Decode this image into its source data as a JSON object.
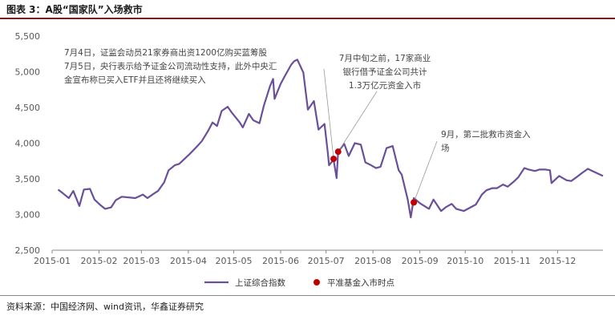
{
  "header": {
    "title": "图表 3：A股“国家队”入场救市"
  },
  "source": {
    "text": "资料来源：中国经济网、wind资讯，华鑫证券研究"
  },
  "colors": {
    "line": "#6a4f9a",
    "marker": "#c00000",
    "axis": "#888888",
    "text": "#595959"
  },
  "chart_data": {
    "type": "line",
    "title": "",
    "xlabel": "",
    "ylabel": "",
    "ylim": [
      2500,
      5500
    ],
    "yticks": [
      "2,500",
      "3,000",
      "3,500",
      "4,000",
      "4,500",
      "5,000",
      "5,500"
    ],
    "ytick_values": [
      2500,
      3000,
      3500,
      4000,
      4500,
      5000,
      5500
    ],
    "categories": [
      "2015-01",
      "2015-02",
      "2015-03",
      "2015-04",
      "2015-05",
      "2015-06",
      "2015-07",
      "2015-08",
      "2015-09",
      "2015-10",
      "2015-11",
      "2015-12"
    ],
    "grid": false,
    "legend_position": "bottom",
    "series": [
      {
        "name": "上证综合指数",
        "x": [
          "2015-01-05",
          "2015-01-08",
          "2015-01-12",
          "2015-01-15",
          "2015-01-19",
          "2015-01-22",
          "2015-01-26",
          "2015-01-29",
          "2015-02-02",
          "2015-02-05",
          "2015-02-09",
          "2015-02-12",
          "2015-02-16",
          "2015-02-25",
          "2015-03-02",
          "2015-03-05",
          "2015-03-09",
          "2015-03-12",
          "2015-03-16",
          "2015-03-19",
          "2015-03-23",
          "2015-03-26",
          "2015-03-30",
          "2015-04-02",
          "2015-04-07",
          "2015-04-10",
          "2015-04-14",
          "2015-04-17",
          "2015-04-20",
          "2015-04-23",
          "2015-04-27",
          "2015-04-30",
          "2015-05-05",
          "2015-05-07",
          "2015-05-11",
          "2015-05-14",
          "2015-05-18",
          "2015-05-21",
          "2015-05-25",
          "2015-05-27",
          "2015-05-28",
          "2015-06-01",
          "2015-06-04",
          "2015-06-08",
          "2015-06-10",
          "2015-06-12",
          "2015-06-16",
          "2015-06-19",
          "2015-06-23",
          "2015-06-26",
          "2015-06-30",
          "2015-07-02",
          "2015-07-03",
          "2015-07-06",
          "2015-07-08",
          "2015-07-09",
          "2015-07-13",
          "2015-07-16",
          "2015-07-20",
          "2015-07-24",
          "2015-07-27",
          "2015-07-30",
          "2015-08-03",
          "2015-08-06",
          "2015-08-10",
          "2015-08-14",
          "2015-08-18",
          "2015-08-20",
          "2015-08-24",
          "2015-08-26",
          "2015-08-28",
          "2015-09-01",
          "2015-09-07",
          "2015-09-10",
          "2015-09-15",
          "2015-09-18",
          "2015-09-22",
          "2015-09-25",
          "2015-09-30",
          "2015-10-08",
          "2015-10-12",
          "2015-10-15",
          "2015-10-19",
          "2015-10-22",
          "2015-10-26",
          "2015-10-29",
          "2015-11-02",
          "2015-11-05",
          "2015-11-09",
          "2015-11-12",
          "2015-11-16",
          "2015-11-19",
          "2015-11-23",
          "2015-11-26",
          "2015-11-27",
          "2015-12-02",
          "2015-12-07",
          "2015-12-10",
          "2015-12-14",
          "2015-12-17",
          "2015-12-21",
          "2015-12-24",
          "2015-12-28",
          "2015-12-31"
        ],
        "values": [
          3350,
          3300,
          3230,
          3330,
          3120,
          3350,
          3360,
          3210,
          3130,
          3080,
          3100,
          3200,
          3250,
          3230,
          3280,
          3230,
          3290,
          3330,
          3450,
          3620,
          3690,
          3710,
          3790,
          3850,
          3960,
          4030,
          4170,
          4290,
          4240,
          4450,
          4510,
          4420,
          4290,
          4220,
          4410,
          4320,
          4280,
          4530,
          4800,
          4900,
          4620,
          4830,
          4950,
          5100,
          5150,
          5170,
          4990,
          4470,
          4590,
          4190,
          4270,
          3900,
          3690,
          3770,
          3510,
          3880,
          3990,
          3820,
          4000,
          3980,
          3730,
          3700,
          3650,
          3670,
          3930,
          3960,
          3620,
          3560,
          3210,
          2960,
          3230,
          3160,
          3080,
          3210,
          3050,
          3100,
          3150,
          3080,
          3050,
          3140,
          3280,
          3340,
          3370,
          3370,
          3420,
          3390,
          3460,
          3520,
          3650,
          3630,
          3610,
          3630,
          3630,
          3620,
          3440,
          3540,
          3480,
          3470,
          3530,
          3580,
          3640,
          3610,
          3570,
          3540
        ]
      }
    ],
    "markers": {
      "name": "平准基金入市时点",
      "points": [
        {
          "x": "2015-07-06",
          "y": 3780
        },
        {
          "x": "2015-07-09",
          "y": 3880
        },
        {
          "x": "2015-08-28",
          "y": 3170
        }
      ]
    },
    "annotations": [
      {
        "lines": [
          "7月4日，证监会动员21家券商出资1200亿购买蓝筹股",
          "7月5日，央行表示给予证金公司流动性支持，此外中央汇",
          "金宣布称已买入ETF并且还将继续买入"
        ]
      },
      {
        "lines": [
          "7月中旬之前，17家商业",
          "银行借予证金公司共计",
          "1.3万亿元资金入市"
        ]
      },
      {
        "lines": [
          "9月，第二批救市资金入",
          "场"
        ]
      }
    ]
  }
}
